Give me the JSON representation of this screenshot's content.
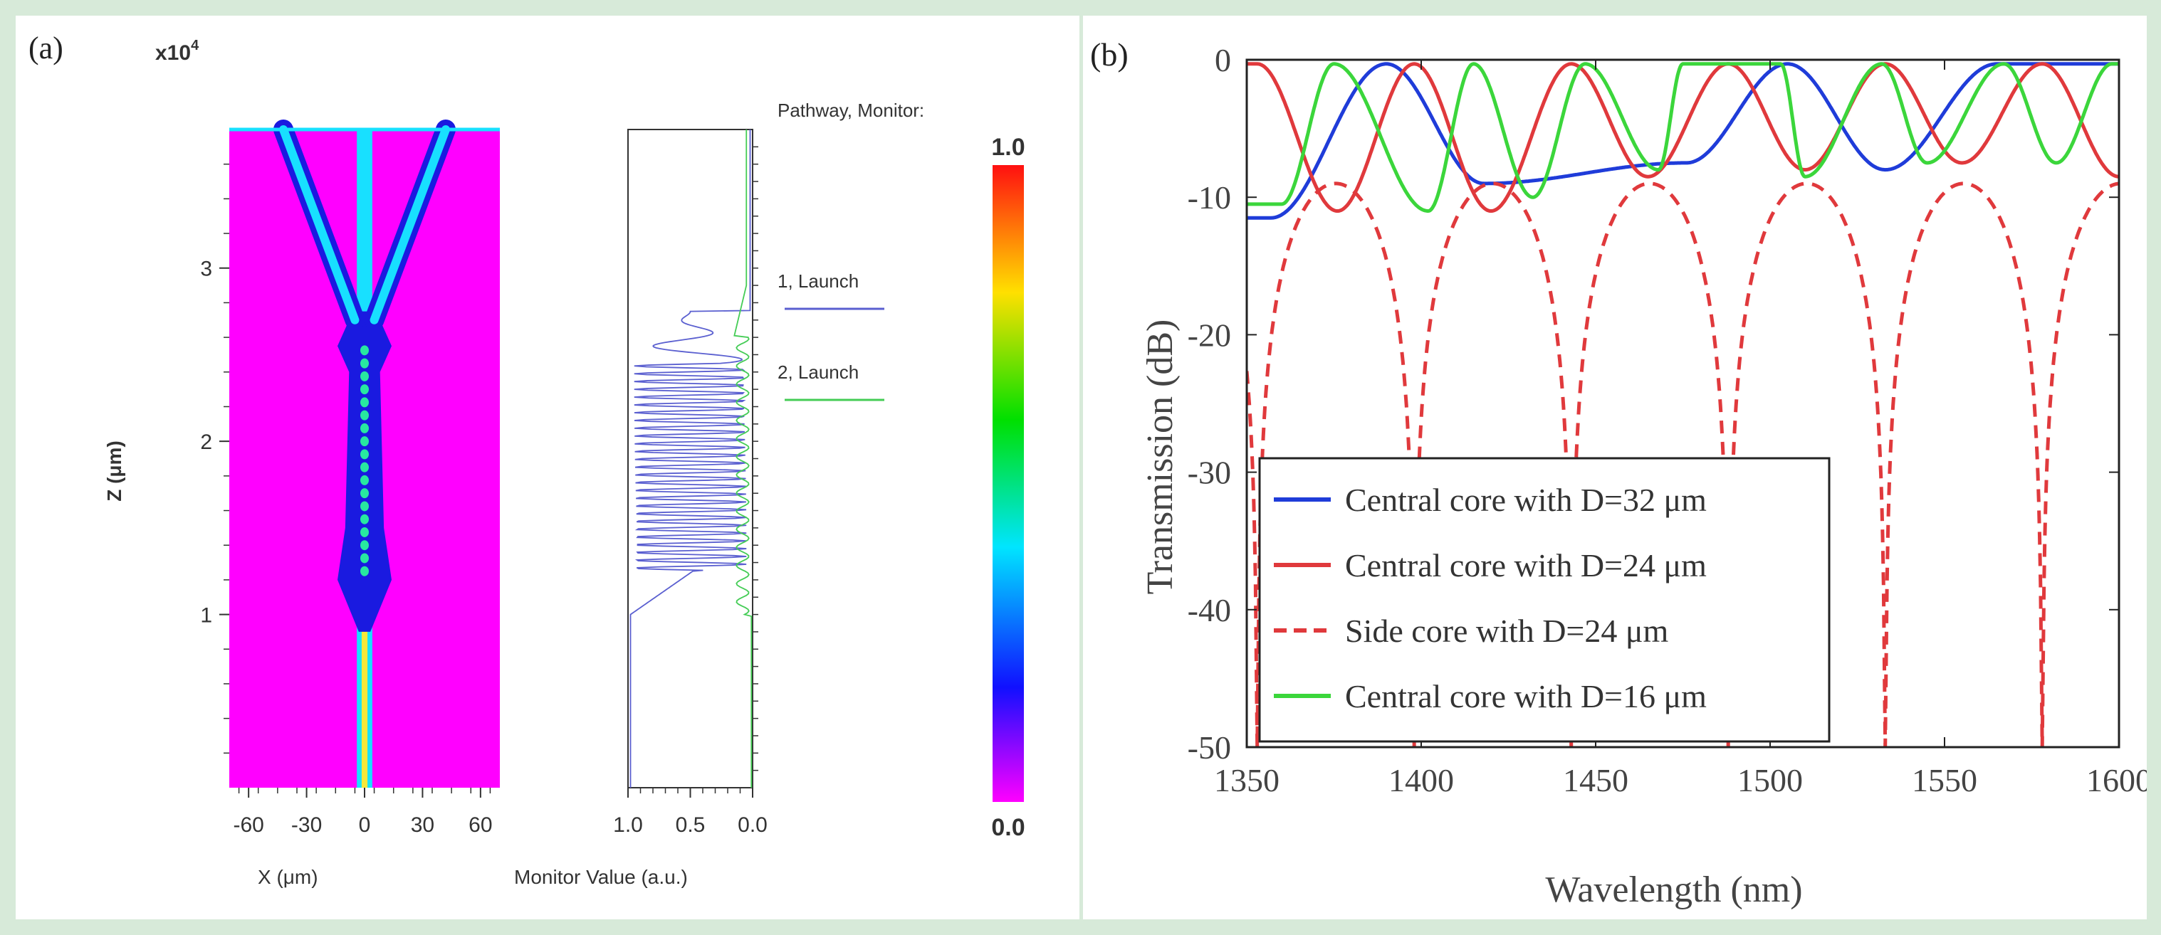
{
  "chart_data": [
    {
      "panel_label": "(a)",
      "type": "heatmap",
      "subplots": [
        {
          "name": "field-map",
          "xlabel": "X (μm)",
          "ylabel": "Z (μm)",
          "exponent_label": "x10",
          "exponent_power": "4",
          "xlim": [
            -70,
            70
          ],
          "ylim": [
            0,
            3.8
          ],
          "xticks": [
            "-60",
            "-30",
            "0",
            "30",
            "60"
          ],
          "yticks": [
            "1",
            "2",
            "3"
          ],
          "background_color": "#ff00ff",
          "features": [
            {
              "name": "central-core",
              "x": 0,
              "z_from": 0,
              "z_to": 3.8
            },
            {
              "name": "left-branch",
              "x_start": -5,
              "z_start": 2.7,
              "x_end": -42,
              "z_end": 3.8
            },
            {
              "name": "right-branch",
              "x_start": 5,
              "z_start": 2.7,
              "x_end": 42,
              "z_end": 3.8
            }
          ]
        },
        {
          "name": "monitor",
          "type": "line",
          "xlabel": "Monitor Value (a.u.)",
          "xticks": [
            "1.0",
            "0.5",
            "0.0"
          ],
          "legend_title": "Pathway, Monitor:",
          "series": [
            {
              "name": "1, Launch",
              "color": "#5a5fd0"
            },
            {
              "name": "2, Launch",
              "color": "#44cc55"
            }
          ]
        },
        {
          "name": "colorbar",
          "range": [
            0.0,
            1.0
          ],
          "max_label": "1.0",
          "min_label": "0.0"
        }
      ]
    },
    {
      "panel_label": "(b)",
      "type": "line",
      "xlabel": "Wavelength (nm)",
      "ylabel": "Transmission (dB)",
      "xlim": [
        1350,
        1600
      ],
      "ylim": [
        -50,
        0
      ],
      "xticks": [
        "1350",
        "1400",
        "1450",
        "1500",
        "1550",
        "1600"
      ],
      "yticks": [
        "0",
        "-10",
        "-20",
        "-30",
        "-40",
        "-50"
      ],
      "series": [
        {
          "name": "Central core with D=32 μm",
          "color": "#1f3cd9",
          "dash": false,
          "peaks": [
            1390,
            1505,
            1565
          ],
          "dips": [
            [
              1357,
              -11.5
            ],
            [
              1418,
              -9
            ],
            [
              1476,
              -7.5
            ],
            [
              1533,
              -8
            ]
          ]
        },
        {
          "name": "Central core with D=24 μm",
          "color": "#e0393c",
          "dash": false,
          "peaks": [
            1353,
            1398,
            1443,
            1488,
            1533,
            1578
          ],
          "dips": [
            [
              1376,
              -11
            ],
            [
              1420,
              -11
            ],
            [
              1465,
              -8.5
            ],
            [
              1510,
              -8
            ],
            [
              1555,
              -7.5
            ],
            [
              1600,
              -8.5
            ]
          ]
        },
        {
          "name": "Side core with D=24 μm",
          "color": "#e0393c",
          "dash": true,
          "peaks": [
            1376,
            1420,
            1465,
            1510,
            1555,
            1600
          ],
          "dips": [
            [
              1353,
              -50
            ],
            [
              1398,
              -50
            ],
            [
              1443,
              -50
            ],
            [
              1488,
              -50
            ],
            [
              1533,
              -50
            ],
            [
              1578,
              -50
            ]
          ]
        },
        {
          "name": "Central core with D=16 μm",
          "color": "#3bd63b",
          "dash": false,
          "peaks": [
            1375,
            1415,
            1447,
            1475,
            1503,
            1532,
            1567,
            1598
          ],
          "dips": [
            [
              1360,
              -10.5
            ],
            [
              1402,
              -11
            ],
            [
              1432,
              -10
            ],
            [
              1468,
              -8
            ],
            [
              1510,
              -8.5
            ],
            [
              1545,
              -7.5
            ],
            [
              1582,
              -7.5
            ]
          ]
        }
      ]
    }
  ]
}
